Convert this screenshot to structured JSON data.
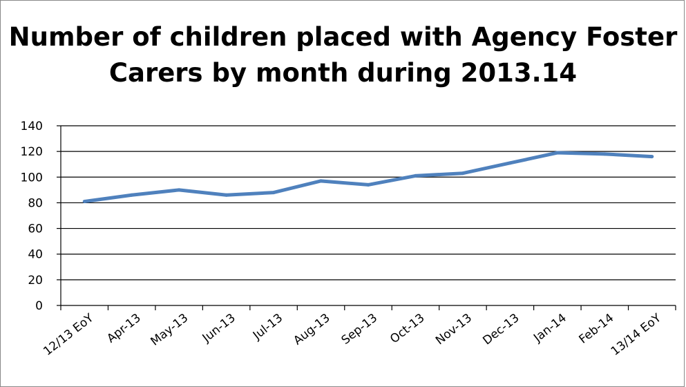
{
  "chart_data": {
    "type": "line",
    "title_lines": [
      "Number of children placed with Agency Foster",
      "Carers by month during 2013.14"
    ],
    "categories": [
      "12/13 EoY",
      "Apr-13",
      "May-13",
      "Jun-13",
      "Jul-13",
      "Aug-13",
      "Sep-13",
      "Oct-13",
      "Nov-13",
      "Dec-13",
      "Jan-14",
      "Feb-14",
      "13/14 EoY"
    ],
    "series": [
      {
        "values": [
          81,
          86,
          90,
          86,
          88,
          97,
          94,
          101,
          103,
          111,
          119,
          118,
          116
        ],
        "color": "#4f81bd"
      }
    ],
    "ylim": [
      0,
      140
    ],
    "yticks": [
      0,
      20,
      40,
      60,
      80,
      100,
      120,
      140
    ],
    "grid": true,
    "legend": "none",
    "xlabel": "",
    "ylabel": ""
  }
}
